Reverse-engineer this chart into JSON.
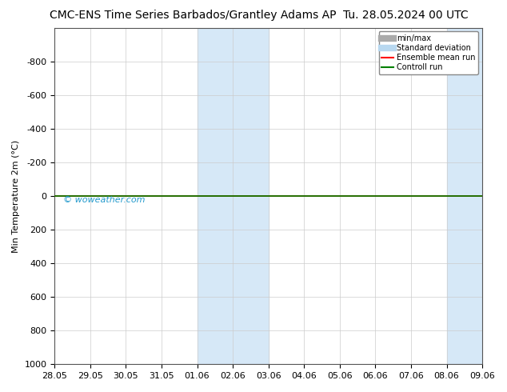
{
  "title": "CMC-ENS Time Series Barbados/Grantley Adams AP",
  "title_right": "Tu. 28.05.2024 00 UTC",
  "ylabel": "Min Temperature 2m (°C)",
  "watermark": "© woweather.com",
  "xlim_min": 0,
  "xlim_max": 12,
  "ylim_top": -1000,
  "ylim_bottom": 1000,
  "yticks": [
    -800,
    -600,
    -400,
    -200,
    0,
    200,
    400,
    600,
    800,
    1000
  ],
  "xtick_labels": [
    "28.05",
    "29.05",
    "30.05",
    "31.05",
    "01.06",
    "02.06",
    "03.06",
    "04.06",
    "05.06",
    "06.06",
    "07.06",
    "08.06",
    "09.06"
  ],
  "xtick_positions": [
    0,
    1,
    2,
    3,
    4,
    5,
    6,
    7,
    8,
    9,
    10,
    11,
    12
  ],
  "shaded_regions": [
    {
      "xmin": 4,
      "xmax": 5,
      "color": "#d6e8f7"
    },
    {
      "xmin": 5,
      "xmax": 6,
      "color": "#d6e8f7"
    },
    {
      "xmin": 11,
      "xmax": 12,
      "color": "#d6e8f7"
    }
  ],
  "hline_y": 0,
  "hline_color_green": "#008000",
  "hline_color_red": "#ff0000",
  "legend_entries": [
    {
      "label": "min/max",
      "color": "#aaaaaa",
      "lw": 6
    },
    {
      "label": "Standard deviation",
      "color": "#b8d8f0",
      "lw": 6
    },
    {
      "label": "Ensemble mean run",
      "color": "#ff0000",
      "lw": 1.5
    },
    {
      "label": "Controll run",
      "color": "#008000",
      "lw": 1.5
    }
  ],
  "background_color": "#ffffff",
  "plot_bg_color": "#ffffff",
  "grid_color": "#cccccc",
  "title_fontsize": 10,
  "axis_fontsize": 8,
  "tick_fontsize": 8,
  "watermark_color": "#2299cc"
}
